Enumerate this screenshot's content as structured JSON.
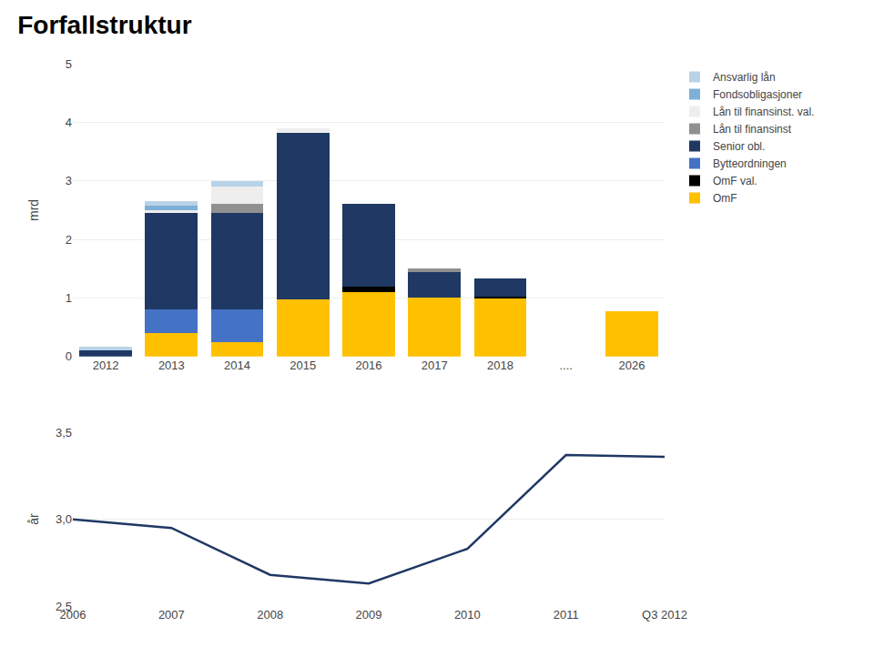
{
  "chart_data": [
    {
      "type": "bar",
      "title": "Forfallstruktur",
      "stacked": true,
      "grid": true,
      "legend": "right",
      "categories": [
        "2012",
        "2013",
        "2014",
        "2015",
        "2016",
        "2017",
        "2018",
        "....",
        "2026"
      ],
      "ylabel": "mrd",
      "ylim": [
        0,
        5
      ],
      "yticks": [
        0,
        1,
        2,
        3,
        4,
        5
      ],
      "series": [
        {
          "name": "OmF",
          "color": "#ffc000",
          "values": [
            0.0,
            0.4,
            0.25,
            0.97,
            1.1,
            1.0,
            1.0,
            0.0,
            0.77
          ]
        },
        {
          "name": "OmF val.",
          "color": "#000000",
          "values": [
            0.0,
            0.0,
            0.0,
            0.0,
            0.1,
            0.0,
            0.03,
            0.0,
            0.0
          ]
        },
        {
          "name": "Bytteordningen",
          "color": "#4472c4",
          "values": [
            0.0,
            0.4,
            0.55,
            0.0,
            0.0,
            0.0,
            0.0,
            0.0,
            0.0
          ]
        },
        {
          "name": "Senior obl.",
          "color": "#1f3864",
          "values": [
            0.1,
            1.65,
            1.65,
            2.85,
            1.4,
            0.45,
            0.3,
            0.0,
            0.0
          ]
        },
        {
          "name": "Lån til finansinst",
          "color": "#909090",
          "values": [
            0.0,
            0.0,
            0.15,
            0.0,
            0.0,
            0.05,
            0.0,
            0.0,
            0.0
          ]
        },
        {
          "name": "Lån til finansinst. val.",
          "color": "#eeeeee",
          "values": [
            0.0,
            0.05,
            0.3,
            0.07,
            0.0,
            0.0,
            0.0,
            0.0,
            0.0
          ]
        },
        {
          "name": "Fondsobligasjoner",
          "color": "#7dafd9",
          "values": [
            0.0,
            0.08,
            0.0,
            0.0,
            0.0,
            0.0,
            0.0,
            0.0,
            0.0
          ]
        },
        {
          "name": "Ansvarlig lån",
          "color": "#b8d3e8",
          "values": [
            0.07,
            0.07,
            0.1,
            0.0,
            0.0,
            0.0,
            0.0,
            0.0,
            0.0
          ]
        }
      ]
    },
    {
      "type": "line",
      "grid": true,
      "categories": [
        "2006",
        "2007",
        "2008",
        "2009",
        "2010",
        "2011",
        "Q3 2012"
      ],
      "ylabel": "år",
      "ylim": [
        2.5,
        3.5
      ],
      "yticks": [
        {
          "value": 2.5,
          "label": "2,5"
        },
        {
          "value": 3.0,
          "label": "3,0"
        },
        {
          "value": 3.5,
          "label": "3,5"
        }
      ],
      "values": [
        3.0,
        2.95,
        2.68,
        2.63,
        2.83,
        3.37,
        3.36
      ],
      "color": "#1f3864"
    }
  ]
}
